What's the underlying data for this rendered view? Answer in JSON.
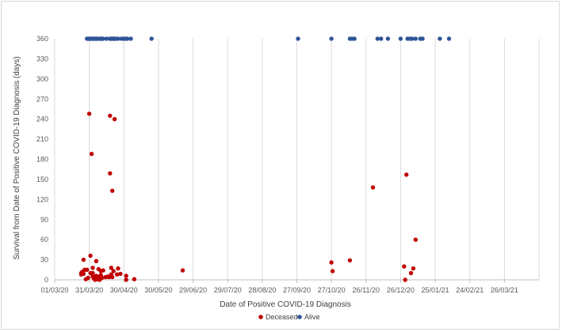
{
  "chart_data": {
    "type": "scatter",
    "title": "",
    "xlabel": "Date of Positive COVID-19 Diagnosis",
    "ylabel": "Survival from Date of Positive COVID-19 Diagnosis (days)",
    "x_is_date": true,
    "xlim": [
      "2020-03-01",
      "2021-04-25"
    ],
    "xticks": [
      "01/03/20",
      "31/03/20",
      "30/04/20",
      "30/05/20",
      "29/06/20",
      "29/07/20",
      "28/08/20",
      "27/09/20",
      "27/10/20",
      "26/11/20",
      "26/12/20",
      "25/01/21",
      "24/02/21",
      "26/03/21"
    ],
    "ylim": [
      0,
      360
    ],
    "yticks": [
      0,
      30,
      60,
      90,
      120,
      150,
      180,
      210,
      240,
      270,
      300,
      330,
      360
    ],
    "grid": "vertical",
    "legend_position": "bottom-center",
    "series": [
      {
        "name": "Deceased",
        "color": "#c00000",
        "points": [
          {
            "x": "2020-03-24",
            "y": 10
          },
          {
            "x": "2020-03-24",
            "y": 8
          },
          {
            "x": "2020-03-25",
            "y": 12
          },
          {
            "x": "2020-03-26",
            "y": 30
          },
          {
            "x": "2020-03-26",
            "y": 9
          },
          {
            "x": "2020-03-27",
            "y": 15
          },
          {
            "x": "2020-03-28",
            "y": 1
          },
          {
            "x": "2020-03-29",
            "y": 15
          },
          {
            "x": "2020-03-30",
            "y": 3
          },
          {
            "x": "2020-03-31",
            "y": 248
          },
          {
            "x": "2020-04-01",
            "y": 36
          },
          {
            "x": "2020-04-01",
            "y": 10
          },
          {
            "x": "2020-04-02",
            "y": 188
          },
          {
            "x": "2020-04-03",
            "y": 5
          },
          {
            "x": "2020-04-03",
            "y": 10
          },
          {
            "x": "2020-04-03",
            "y": 18
          },
          {
            "x": "2020-04-04",
            "y": 2
          },
          {
            "x": "2020-04-05",
            "y": 0
          },
          {
            "x": "2020-04-05",
            "y": 4
          },
          {
            "x": "2020-04-06",
            "y": 28
          },
          {
            "x": "2020-04-06",
            "y": 6
          },
          {
            "x": "2020-04-07",
            "y": 1
          },
          {
            "x": "2020-04-08",
            "y": 2
          },
          {
            "x": "2020-04-08",
            "y": 16
          },
          {
            "x": "2020-04-09",
            "y": 5
          },
          {
            "x": "2020-04-09",
            "y": 0
          },
          {
            "x": "2020-04-10",
            "y": 13
          },
          {
            "x": "2020-04-10",
            "y": 7
          },
          {
            "x": "2020-04-11",
            "y": 3
          },
          {
            "x": "2020-04-12",
            "y": 14
          },
          {
            "x": "2020-04-14",
            "y": 4
          },
          {
            "x": "2020-04-16",
            "y": 5
          },
          {
            "x": "2020-04-17",
            "y": 4
          },
          {
            "x": "2020-04-18",
            "y": 159
          },
          {
            "x": "2020-04-18",
            "y": 245
          },
          {
            "x": "2020-04-19",
            "y": 8
          },
          {
            "x": "2020-04-19",
            "y": 18
          },
          {
            "x": "2020-04-20",
            "y": 133
          },
          {
            "x": "2020-04-20",
            "y": 4
          },
          {
            "x": "2020-04-21",
            "y": 13
          },
          {
            "x": "2020-04-22",
            "y": 240
          },
          {
            "x": "2020-04-24",
            "y": 8
          },
          {
            "x": "2020-04-25",
            "y": 17
          },
          {
            "x": "2020-04-27",
            "y": 9
          },
          {
            "x": "2020-05-02",
            "y": 6
          },
          {
            "x": "2020-05-02",
            "y": 0
          },
          {
            "x": "2020-05-09",
            "y": 1
          },
          {
            "x": "2020-06-20",
            "y": 14
          },
          {
            "x": "2020-10-27",
            "y": 26
          },
          {
            "x": "2020-10-28",
            "y": 13
          },
          {
            "x": "2020-11-12",
            "y": 29
          },
          {
            "x": "2020-12-02",
            "y": 138
          },
          {
            "x": "2020-12-29",
            "y": 20
          },
          {
            "x": "2020-12-30",
            "y": 0
          },
          {
            "x": "2020-12-31",
            "y": 157
          },
          {
            "x": "2021-01-04",
            "y": 10
          },
          {
            "x": "2021-01-06",
            "y": 17
          },
          {
            "x": "2021-01-08",
            "y": 60
          }
        ]
      },
      {
        "name": "Alive",
        "color": "#2e5597",
        "points": [
          {
            "x": "2020-03-29",
            "y": 365
          },
          {
            "x": "2020-03-30",
            "y": 365
          },
          {
            "x": "2020-03-31",
            "y": 365
          },
          {
            "x": "2020-04-01",
            "y": 365
          },
          {
            "x": "2020-04-02",
            "y": 365
          },
          {
            "x": "2020-04-03",
            "y": 365
          },
          {
            "x": "2020-04-04",
            "y": 365
          },
          {
            "x": "2020-04-05",
            "y": 365
          },
          {
            "x": "2020-04-06",
            "y": 365
          },
          {
            "x": "2020-04-07",
            "y": 365
          },
          {
            "x": "2020-04-09",
            "y": 365
          },
          {
            "x": "2020-04-10",
            "y": 365
          },
          {
            "x": "2020-04-11",
            "y": 365
          },
          {
            "x": "2020-04-12",
            "y": 365
          },
          {
            "x": "2020-04-15",
            "y": 365
          },
          {
            "x": "2020-04-18",
            "y": 365
          },
          {
            "x": "2020-04-19",
            "y": 365
          },
          {
            "x": "2020-04-20",
            "y": 365
          },
          {
            "x": "2020-04-21",
            "y": 365
          },
          {
            "x": "2020-04-22",
            "y": 365
          },
          {
            "x": "2020-04-23",
            "y": 365
          },
          {
            "x": "2020-04-25",
            "y": 365
          },
          {
            "x": "2020-04-28",
            "y": 365
          },
          {
            "x": "2020-04-30",
            "y": 365
          },
          {
            "x": "2020-05-01",
            "y": 365
          },
          {
            "x": "2020-05-03",
            "y": 365
          },
          {
            "x": "2020-05-06",
            "y": 365
          },
          {
            "x": "2020-05-24",
            "y": 365
          },
          {
            "x": "2020-09-28",
            "y": 365
          },
          {
            "x": "2020-10-27",
            "y": 365
          },
          {
            "x": "2020-11-12",
            "y": 365
          },
          {
            "x": "2020-11-14",
            "y": 365
          },
          {
            "x": "2020-11-16",
            "y": 365
          },
          {
            "x": "2020-12-06",
            "y": 365
          },
          {
            "x": "2020-12-09",
            "y": 365
          },
          {
            "x": "2020-12-15",
            "y": 365
          },
          {
            "x": "2020-12-26",
            "y": 365
          },
          {
            "x": "2021-01-01",
            "y": 365
          },
          {
            "x": "2021-01-03",
            "y": 365
          },
          {
            "x": "2021-01-05",
            "y": 365
          },
          {
            "x": "2021-01-08",
            "y": 365
          },
          {
            "x": "2021-01-12",
            "y": 365
          },
          {
            "x": "2021-01-14",
            "y": 365
          },
          {
            "x": "2021-01-29",
            "y": 365
          },
          {
            "x": "2021-02-06",
            "y": 365
          }
        ]
      }
    ]
  }
}
